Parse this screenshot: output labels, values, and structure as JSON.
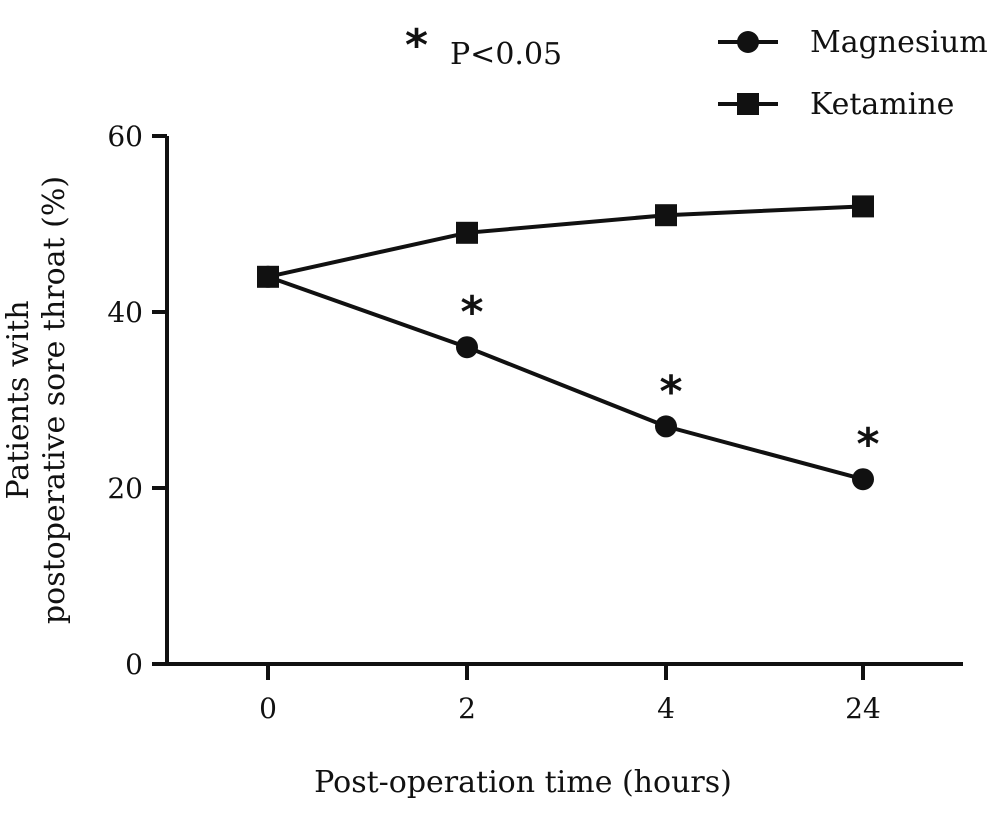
{
  "chart_data": {
    "type": "line",
    "title": "",
    "xlabel": "Post-operation time (hours)",
    "ylabel_lines": [
      "Patients with",
      "postoperative sore throat (%)"
    ],
    "categories": [
      "0",
      "2",
      "4",
      "24"
    ],
    "ylim": [
      0,
      60
    ],
    "yticks": [
      "0",
      "20",
      "40",
      "60"
    ],
    "grid": false,
    "legend_position": "top-right",
    "series": [
      {
        "name": "Magnesium",
        "marker": "circle",
        "values": [
          44,
          36,
          27,
          21
        ]
      },
      {
        "name": "Ketamine",
        "marker": "square",
        "values": [
          44,
          49,
          51,
          52
        ]
      }
    ],
    "significance": {
      "symbol": "*",
      "label": "P<0.05",
      "series": "Magnesium",
      "category_indices": [
        1,
        2,
        3
      ]
    }
  },
  "colors": {
    "ink": "#111111",
    "background": "#ffffff"
  }
}
